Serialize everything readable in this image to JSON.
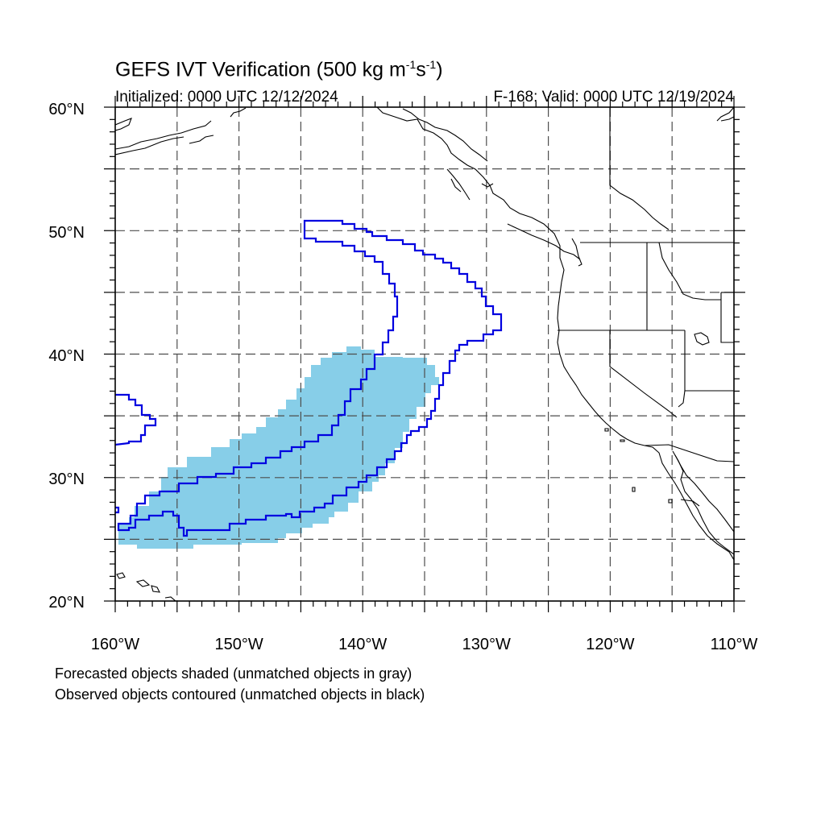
{
  "title": {
    "main": "GEFS IVT Verification (500 kg m",
    "sup1": "-1",
    "mid": "s",
    "sup2": "-1",
    "end": ")"
  },
  "initialized": "Initialized: 0000 UTC 12/12/2024",
  "valid": "F-168: Valid: 0000 UTC 12/19/2024",
  "axes": {
    "lon_range": [
      -160,
      -110
    ],
    "lat_range": [
      20,
      60
    ],
    "lat_labels": [
      "20°N",
      "30°N",
      "40°N",
      "50°N",
      "60°N"
    ],
    "lon_labels": [
      "160°W",
      "150°W",
      "140°W",
      "130°W",
      "120°W",
      "110°W"
    ]
  },
  "legend_notes": [
    "Forecasted objects shaded (unmatched objects in gray)",
    "Observed objects contoured (unmatched objects in black)"
  ],
  "colors": {
    "forecast_fill": "#87cee8",
    "observed_contour": "#0000e0",
    "coastline": "#000000",
    "grid": "#4d4d4d"
  }
}
